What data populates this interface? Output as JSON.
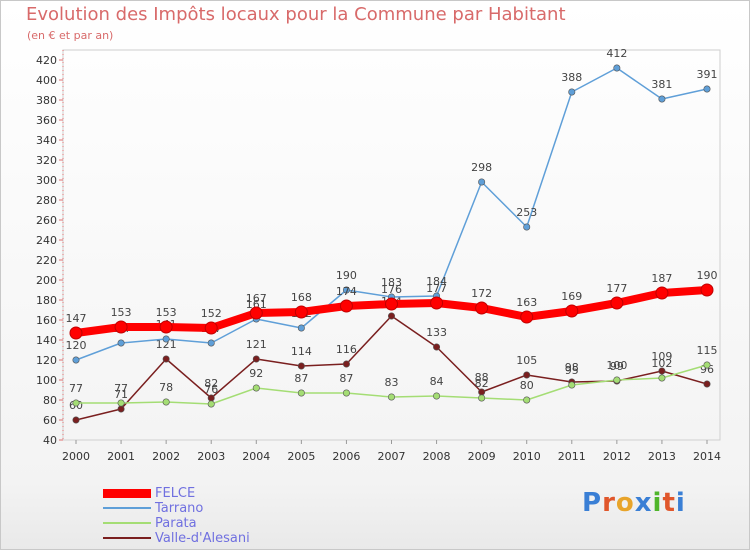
{
  "header": {
    "title": "Evolution des Impôts locaux pour la Commune par Habitant",
    "subtitle": "(en € et par an)"
  },
  "brand": {
    "logo_text": "Proxiti",
    "colors": [
      "#3a7fd5",
      "#e0562b",
      "#e8a42a",
      "#3a7fd5",
      "#4fb52a",
      "#e0562b",
      "#3a7fd5"
    ]
  },
  "chart_data": {
    "type": "line",
    "x": [
      2000,
      2001,
      2002,
      2003,
      2004,
      2005,
      2006,
      2007,
      2008,
      2009,
      2010,
      2011,
      2012,
      2013,
      2014
    ],
    "ylim": [
      40,
      420
    ],
    "yticks": [
      40,
      60,
      80,
      100,
      120,
      140,
      160,
      180,
      200,
      220,
      240,
      260,
      280,
      300,
      320,
      340,
      360,
      380,
      400,
      420
    ],
    "grid": false,
    "legend_position": "bottom-left",
    "series": [
      {
        "name": "FELCE",
        "color": "#ff0000",
        "values": [
          147,
          153,
          153,
          152,
          167,
          168,
          174,
          176,
          177,
          172,
          163,
          169,
          177,
          187,
          190
        ],
        "labels": [
          "147",
          "153",
          "153",
          "152",
          "167",
          "168",
          "174",
          "176",
          "177",
          "172",
          "163",
          "169",
          "177",
          "187",
          "190"
        ]
      },
      {
        "name": "Tarrano",
        "color": "#5f9fd8",
        "values": [
          120,
          137,
          141,
          137,
          161,
          152,
          190,
          183,
          184,
          298,
          253,
          388,
          412,
          381,
          391
        ],
        "labels": [
          "120",
          "137",
          "141",
          "137",
          "161",
          "152",
          "190",
          "183",
          "184",
          "298",
          "253",
          "388",
          "412",
          "381",
          "391"
        ]
      },
      {
        "name": "Parata",
        "color": "#a4dd74",
        "values": [
          77,
          77,
          78,
          76,
          92,
          87,
          87,
          83,
          84,
          82,
          80,
          95,
          100,
          102,
          115
        ],
        "labels": [
          "77",
          "77",
          "78",
          "76",
          "92",
          "87",
          "87",
          "83",
          "84",
          "82",
          "80",
          "95",
          "100",
          "102",
          "115"
        ]
      },
      {
        "name": "Valle-d'Alesani",
        "color": "#7a1f1f",
        "values": [
          60,
          71,
          121,
          82,
          121,
          114,
          116,
          164,
          133,
          88,
          105,
          98,
          99,
          109,
          96
        ],
        "labels": [
          "60",
          "71",
          "121",
          "82",
          "121",
          "114",
          "116",
          "164",
          "133",
          "88",
          "105",
          "98",
          "99",
          "109",
          "96"
        ]
      }
    ]
  }
}
